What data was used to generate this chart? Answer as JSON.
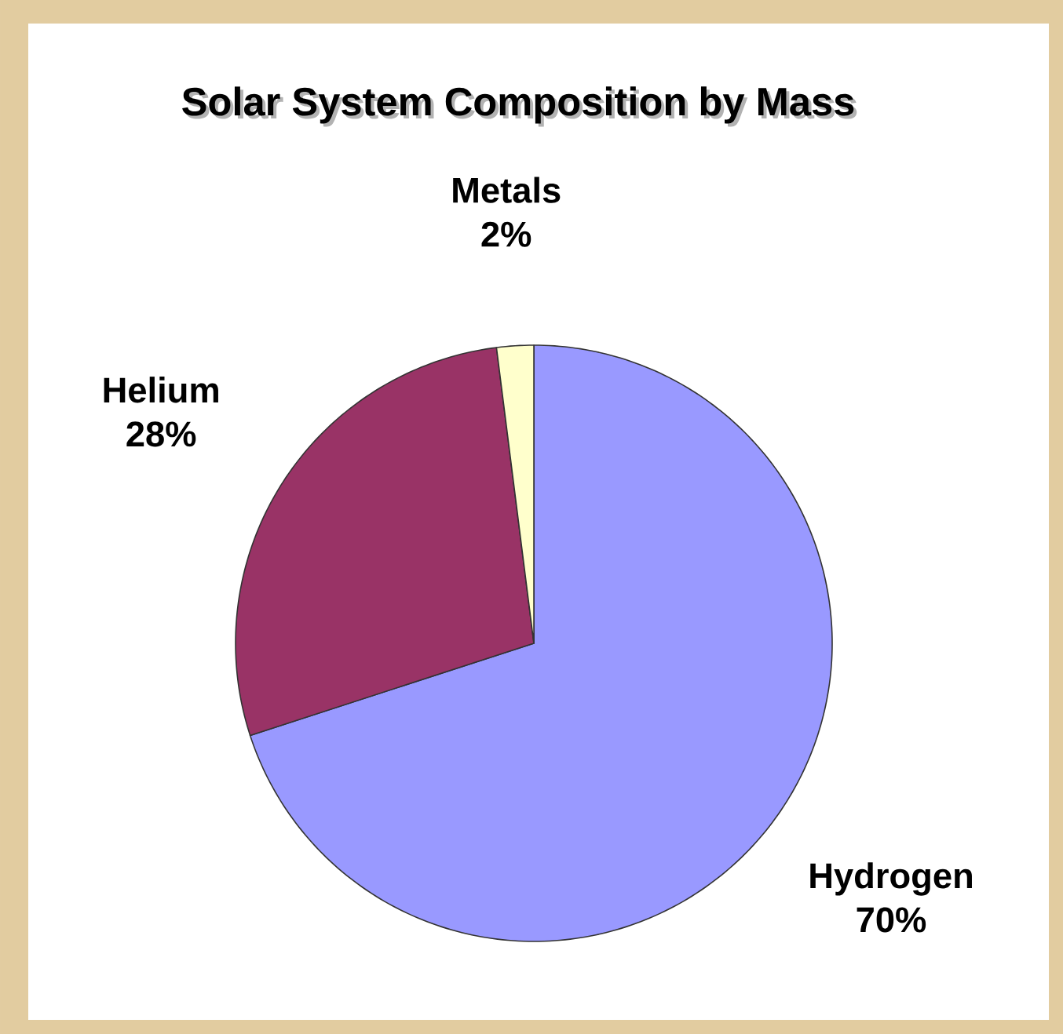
{
  "chart_data": {
    "type": "pie",
    "title": "Solar System Composition by Mass",
    "categories": [
      "Hydrogen",
      "Helium",
      "Metals"
    ],
    "values": [
      70,
      28,
      2
    ],
    "colors": [
      "#9999ff",
      "#993366",
      "#ffffcc"
    ],
    "value_labels": [
      "70%",
      "28%",
      "2%"
    ]
  }
}
